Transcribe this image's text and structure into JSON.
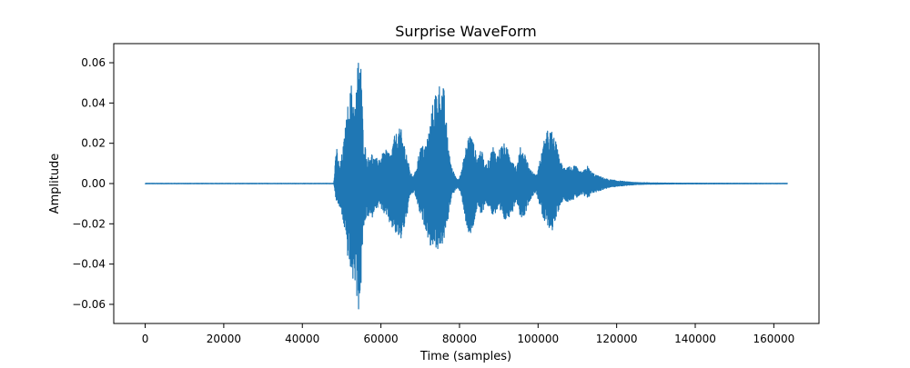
{
  "chart_data": {
    "type": "line",
    "title": "Surprise WaveForm",
    "xlabel": "Time (samples)",
    "ylabel": "Amplitude",
    "xlim": [
      -8000,
      171500
    ],
    "ylim": [
      -0.0695,
      0.0695
    ],
    "x_ticks": [
      0,
      20000,
      40000,
      60000,
      80000,
      100000,
      120000,
      140000,
      160000
    ],
    "x_tick_labels": [
      "0",
      "20000",
      "40000",
      "60000",
      "80000",
      "100000",
      "120000",
      "140000",
      "160000"
    ],
    "y_ticks": [
      -0.06,
      -0.04,
      -0.02,
      0.0,
      0.02,
      0.04,
      0.06
    ],
    "y_tick_labels": [
      "−0.06",
      "−0.04",
      "−0.02",
      "0.00",
      "0.02",
      "0.04",
      "0.06"
    ],
    "grid": false,
    "legend": "none",
    "series": [
      {
        "color": "#1f77b4",
        "x_range": [
          0,
          163500
        ],
        "envelope": {
          "x": [
            0,
            48000,
            48700,
            49500,
            50500,
            51500,
            52500,
            53500,
            54300,
            54800,
            55500,
            56500,
            57500,
            58500,
            60000,
            61500,
            62500,
            63500,
            65000,
            66500,
            67500,
            68500,
            70000,
            71500,
            72500,
            73500,
            74500,
            75300,
            76000,
            77000,
            78000,
            79500,
            80500,
            81500,
            82500,
            83500,
            84500,
            85500,
            86500,
            87500,
            88500,
            89500,
            90500,
            91500,
            92500,
            93500,
            94500,
            95500,
            96500,
            98000,
            99500,
            100500,
            101500,
            102500,
            103500,
            104500,
            105500,
            106500,
            107500,
            108500,
            109500,
            110500,
            111500,
            112500,
            113500,
            115000,
            116500,
            118000,
            120000,
            122000,
            125000,
            130000,
            135000,
            163500
          ],
          "upper": [
            0.0001,
            0.0001,
            0.019,
            0.008,
            0.02,
            0.038,
            0.05,
            0.04,
            0.066,
            0.066,
            0.026,
            0.012,
            0.016,
            0.012,
            0.014,
            0.017,
            0.015,
            0.024,
            0.028,
            0.016,
            0.005,
            0.004,
            0.018,
            0.02,
            0.03,
            0.044,
            0.05,
            0.05,
            0.048,
            0.022,
            0.008,
            0.002,
            0.006,
            0.017,
            0.026,
            0.021,
            0.013,
            0.018,
            0.009,
            0.012,
            0.019,
            0.014,
            0.019,
            0.02,
            0.016,
            0.013,
            0.008,
            0.018,
            0.016,
            0.007,
            0.004,
            0.012,
            0.021,
            0.027,
            0.026,
            0.021,
            0.012,
            0.008,
            0.01,
            0.008,
            0.009,
            0.006,
            0.006,
            0.009,
            0.006,
            0.004,
            0.003,
            0.002,
            0.0015,
            0.001,
            0.0005,
            0.0003,
            0.0002,
            0.0001
          ],
          "lower": [
            -0.0001,
            -0.0001,
            -0.01,
            -0.012,
            -0.02,
            -0.036,
            -0.048,
            -0.05,
            -0.064,
            -0.058,
            -0.024,
            -0.016,
            -0.019,
            -0.012,
            -0.012,
            -0.018,
            -0.021,
            -0.025,
            -0.029,
            -0.018,
            -0.006,
            -0.004,
            -0.016,
            -0.023,
            -0.031,
            -0.031,
            -0.033,
            -0.031,
            -0.03,
            -0.019,
            -0.006,
            -0.002,
            -0.006,
            -0.018,
            -0.029,
            -0.022,
            -0.012,
            -0.017,
            -0.01,
            -0.012,
            -0.016,
            -0.015,
            -0.016,
            -0.019,
            -0.017,
            -0.014,
            -0.008,
            -0.017,
            -0.016,
            -0.008,
            -0.004,
            -0.012,
            -0.02,
            -0.021,
            -0.024,
            -0.019,
            -0.011,
            -0.008,
            -0.009,
            -0.008,
            -0.008,
            -0.006,
            -0.006,
            -0.008,
            -0.005,
            -0.004,
            -0.003,
            -0.002,
            -0.0015,
            -0.001,
            -0.0005,
            -0.0003,
            -0.0002,
            -0.0001
          ]
        }
      }
    ]
  }
}
